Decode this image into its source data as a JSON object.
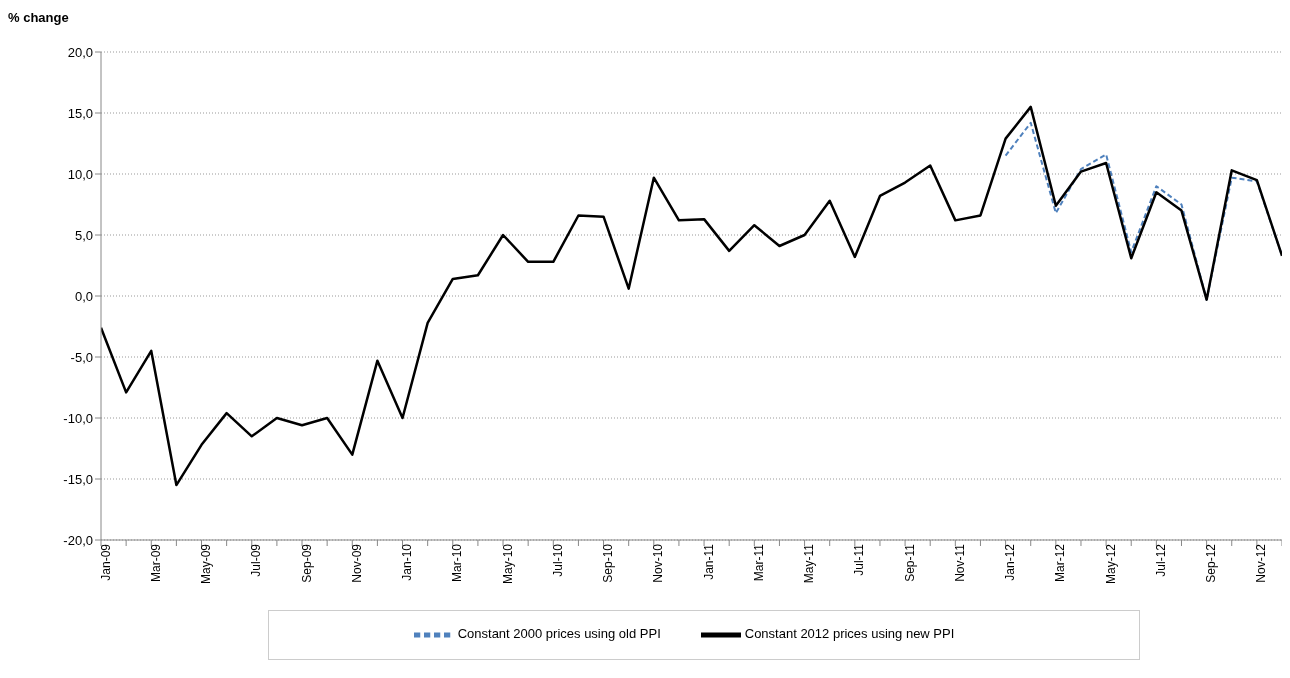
{
  "chart_data": {
    "type": "line",
    "ylabel": "% change",
    "categories": [
      "Jan-09",
      null,
      "Mar-09",
      null,
      "May-09",
      null,
      "Jul-09",
      null,
      "Sep-09",
      null,
      "Nov-09",
      null,
      "Jan-10",
      null,
      "Mar-10",
      null,
      "May-10",
      null,
      "Jul-10",
      null,
      "Sep-10",
      null,
      "Nov-10",
      null,
      "Jan-11",
      null,
      "Mar-11",
      null,
      "May-11",
      null,
      "Jul-11",
      null,
      "Sep-11",
      null,
      "Nov-11",
      null,
      "Jan-12",
      null,
      "Mar-12",
      null,
      "May-12",
      null,
      "Jul-12",
      null,
      "Sep-12",
      null,
      "Nov-12",
      null
    ],
    "series": [
      {
        "name": "Constant 2000 prices using old PPI",
        "color": "#4f81bd",
        "line_style": "dashed",
        "values": [
          null,
          null,
          null,
          null,
          null,
          null,
          null,
          null,
          null,
          null,
          null,
          null,
          null,
          null,
          null,
          null,
          null,
          null,
          null,
          null,
          null,
          null,
          null,
          null,
          null,
          null,
          null,
          null,
          null,
          null,
          null,
          null,
          null,
          null,
          null,
          null,
          11.5,
          14.2,
          6.8,
          10.4,
          11.6,
          3.6,
          9.0,
          7.5,
          -0.3,
          9.7,
          9.4,
          3.3
        ]
      },
      {
        "name": "Constant 2012 prices using new PPI",
        "color": "#000000",
        "line_style": "solid",
        "values": [
          -2.6,
          -7.9,
          -4.5,
          -15.5,
          -12.2,
          -9.6,
          -11.5,
          -10.0,
          -10.6,
          -10.0,
          -13.0,
          -5.3,
          -10.0,
          -2.2,
          1.4,
          1.7,
          5.0,
          2.8,
          2.8,
          6.6,
          6.5,
          0.6,
          9.7,
          6.2,
          6.3,
          3.7,
          5.8,
          4.1,
          5.0,
          7.8,
          3.2,
          8.2,
          9.3,
          10.7,
          6.2,
          6.6,
          12.9,
          15.5,
          7.4,
          10.2,
          10.9,
          3.1,
          8.5,
          7.0,
          -0.3,
          10.3,
          9.5,
          3.3
        ]
      }
    ],
    "ylim": [
      -20,
      20
    ],
    "yticks": [
      {
        "value": -20,
        "label": "-20,0"
      },
      {
        "value": -15,
        "label": "-15,0"
      },
      {
        "value": -10,
        "label": "-10,0"
      },
      {
        "value": -5,
        "label": "-5,0"
      },
      {
        "value": 0,
        "label": "0,0"
      },
      {
        "value": 5,
        "label": "5,0"
      },
      {
        "value": 10,
        "label": "10,0"
      },
      {
        "value": 15,
        "label": "15,0"
      },
      {
        "value": 20,
        "label": "20,0"
      }
    ],
    "grid": "y",
    "legend": "bottom",
    "marker": "none"
  }
}
